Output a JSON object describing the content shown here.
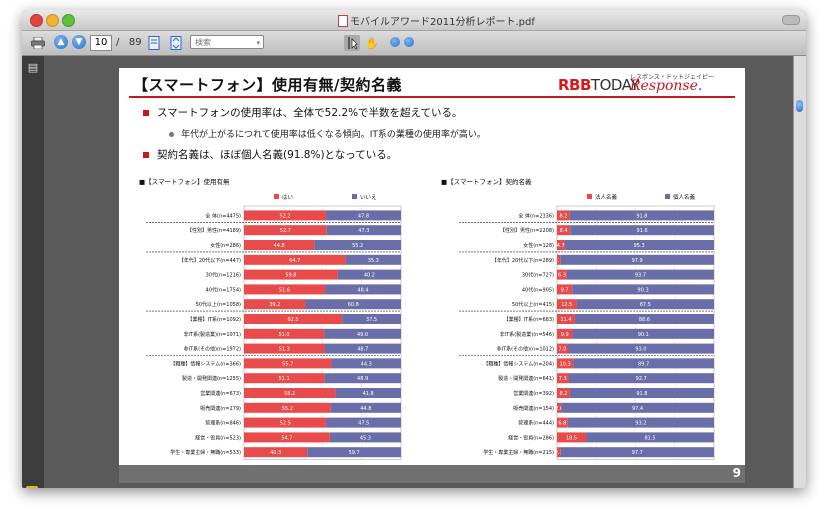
{
  "window": {
    "title": "モバイルアワード2011分析レポート.pdf"
  },
  "toolbar": {
    "current_page": "10",
    "page_separator": "/",
    "total_pages": "89",
    "search_placeholder": "検索"
  },
  "slide": {
    "title": "【スマートフォン】使用有無/契約名義",
    "logo_main": "RBB",
    "logo_main_suffix": "TODAY",
    "logo_secondary_small": "レスポンス・ドットジェイピー",
    "logo_secondary": "Response.",
    "bullets": [
      "スマートフォンの使用率は、全体で52.2%で半数を超えている。",
      "契約名義は、ほぼ個人名義(91.8%)となっている。"
    ],
    "sub_bullet": "年代が上がるにつれて使用率は低くなる傾向。IT系の業種の使用率が高い。",
    "page_number": "9"
  },
  "chart_data": [
    {
      "type": "bar",
      "title": "■【スマートフォン】使用有無",
      "orientation": "horizontal-stacked-100",
      "categories": [
        "全 体(n=4475)",
        "【性別】男性(n=4189)",
        "女性(n=286)",
        "【年代】20代以下(n=447)",
        "30代(n=1216)",
        "40代(n=1754)",
        "50代以上(n=1058)",
        "【業種】IT系(n=1092)",
        "非IT系(製造業)(n=1071)",
        "非IT系(その他)(n=1972)",
        "【職種】情報システム(n=366)",
        "製造・開発関連(n=1255)",
        "営業関連(n=673)",
        "販売関連(n=279)",
        "管理系(n=846)",
        "経営・役員(n=523)",
        "学生・専業主婦・無職(n=533)"
      ],
      "series": [
        {
          "name": "はい",
          "color": "#e84b4b",
          "values": [
            52.2,
            52.7,
            44.8,
            64.7,
            59.8,
            51.6,
            39.2,
            62.5,
            51.0,
            51.3,
            55.7,
            51.1,
            58.2,
            55.2,
            52.5,
            54.7,
            40.3
          ]
        },
        {
          "name": "いいえ",
          "color": "#6a6ea8",
          "values": [
            47.8,
            47.3,
            55.2,
            35.3,
            40.2,
            48.4,
            60.8,
            37.5,
            49.0,
            48.7,
            44.3,
            48.9,
            41.8,
            44.8,
            47.5,
            45.3,
            59.7
          ]
        }
      ],
      "xlim": [
        0,
        100
      ],
      "x_ticks": [
        "0%",
        "25%",
        "50%",
        "75%",
        "100%"
      ],
      "legend": "top"
    },
    {
      "type": "bar",
      "title": "■【スマートフォン】契約名義",
      "orientation": "horizontal-stacked-100",
      "categories": [
        "全 体(n=2336)",
        "【性別】男性(n=2208)",
        "女性(n=128)",
        "【年代】20代以下(n=289)",
        "30代(n=727)",
        "40代(n=905)",
        "50代以上(n=415)",
        "【業種】IT系(n=683)",
        "非IT系(製造業)(n=546)",
        "非IT系(その他)(n=1012)",
        "【職種】情報システム(n=204)",
        "製造・開発関連(n=641)",
        "営業関連(n=392)",
        "販売関連(n=154)",
        "管理系(n=444)",
        "経営・役員(n=286)",
        "学生・専業主婦・無職(n=215)"
      ],
      "series": [
        {
          "name": "法人名義",
          "color": "#e84b4b",
          "values": [
            8.2,
            8.4,
            4.7,
            2.1,
            6.3,
            9.7,
            12.5,
            11.4,
            9.9,
            7.0,
            10.3,
            7.3,
            8.2,
            2.6,
            6.8,
            18.5,
            2.3
          ]
        },
        {
          "name": "個人名義",
          "color": "#6a6ea8",
          "values": [
            91.8,
            91.6,
            95.3,
            97.9,
            93.7,
            90.3,
            87.5,
            88.6,
            90.1,
            93.0,
            89.7,
            92.7,
            91.8,
            97.4,
            93.2,
            81.5,
            97.7
          ]
        }
      ],
      "xlim": [
        0,
        100
      ],
      "x_ticks": [
        "0%",
        "25%",
        "50%",
        "75%",
        "100%"
      ],
      "legend": "top"
    }
  ]
}
